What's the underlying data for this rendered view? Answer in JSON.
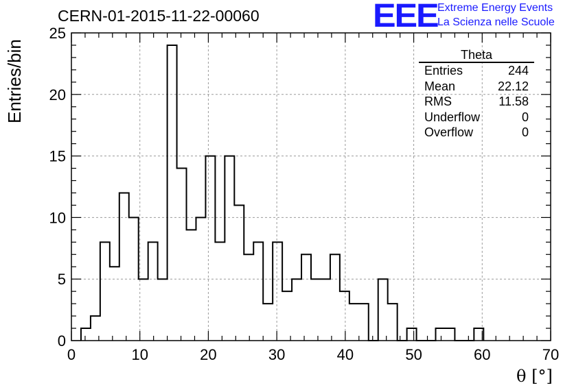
{
  "header": {
    "title": "CERN-01-2015-11-22-00060",
    "logo_text": "EEE",
    "logo_line1": "Extreme Energy Events",
    "logo_line2": "La Scienza nelle Scuole",
    "logo_color": "#1a1aff"
  },
  "stats_box": {
    "title": "Theta",
    "rows": [
      {
        "label": "Entries",
        "value": "244"
      },
      {
        "label": "Mean",
        "value": "22.12"
      },
      {
        "label": "RMS",
        "value": "11.58"
      },
      {
        "label": "Underflow",
        "value": "0"
      },
      {
        "label": "Overflow",
        "value": "0"
      }
    ]
  },
  "chart_data": {
    "type": "histogram",
    "title": "CERN-01-2015-11-22-00060",
    "xlabel": "θ [°]",
    "ylabel": "Entries/bin",
    "xlim": [
      0,
      70
    ],
    "ylim": [
      0,
      25
    ],
    "grid": true,
    "bin_width": 1.4,
    "x_start": 1.4,
    "values": [
      1,
      2,
      8,
      6,
      12,
      10,
      5,
      8,
      5,
      24,
      14,
      9,
      10,
      15,
      8,
      15,
      11,
      7,
      8,
      3,
      8,
      4,
      5,
      7,
      5,
      5,
      7,
      4,
      3,
      3,
      0,
      5,
      3,
      0,
      1,
      0,
      0,
      1,
      1,
      0,
      0,
      1
    ],
    "xticks": [
      "0",
      "10",
      "20",
      "30",
      "40",
      "50",
      "60",
      "70"
    ],
    "yticks": [
      "0",
      "5",
      "10",
      "15",
      "20",
      "25"
    ],
    "line_color": "#000000",
    "grid_color": "#9a9a9a"
  }
}
